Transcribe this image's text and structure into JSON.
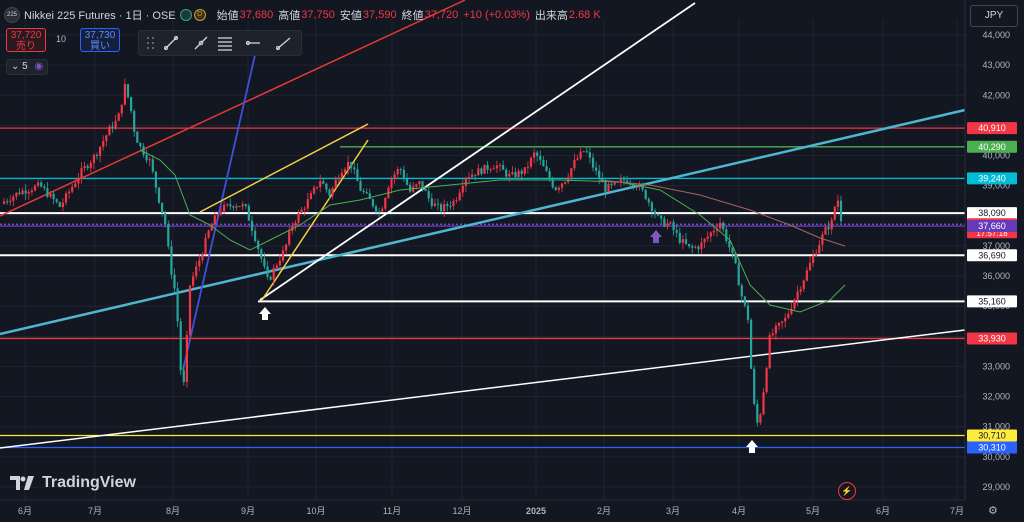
{
  "header": {
    "symbol": "Nikkei 225 Futures · 1日 · OSE",
    "symbol_icon": "225",
    "d_badge": "D",
    "open_label": "始値",
    "open": "37,680",
    "high_label": "高値",
    "high": "37,750",
    "low_label": "安値",
    "low": "37,590",
    "close_label": "終値",
    "close": "37,720",
    "change": "+10 (+0.03%)",
    "volume_label": "出来高",
    "volume": "2.68 K"
  },
  "order": {
    "sell_price": "37,720",
    "sell_label": "売り",
    "qty": "10",
    "buy_price": "37,730",
    "buy_label": "買い"
  },
  "period": "5",
  "currency": "JPY",
  "logo": "TradingView",
  "icons": [
    "drag-handle-icon",
    "trend-line-icon",
    "info-line-icon",
    "fib-icon",
    "horizontal-ray-icon",
    "ray-icon",
    "chevron-down-icon",
    "gear-icon",
    "bolt-icon"
  ],
  "colors": {
    "up": "#f23645",
    "down": "#26a69a",
    "bg": "#131722"
  },
  "chart_data": {
    "type": "candlestick",
    "title": "Nikkei 225 Futures · 1日 · OSE",
    "x_tick_labels": [
      "6月",
      "7月",
      "8月",
      "9月",
      "10月",
      "11月",
      "12月",
      "2025",
      "2月",
      "3月",
      "4月",
      "5月",
      "6月",
      "7月"
    ],
    "y_tick_labels": [
      "29,000",
      "30,000",
      "31,000",
      "32,000",
      "33,000",
      "34,000",
      "35,000",
      "36,000",
      "37,000",
      "38,000",
      "39,000",
      "40,000",
      "41,000",
      "42,000",
      "43,000",
      "44,000"
    ],
    "ylim": [
      28900,
      44200
    ],
    "grid": true,
    "ohlc_points": [
      [
        0,
        38400
      ],
      [
        20,
        38800
      ],
      [
        40,
        39000
      ],
      [
        60,
        38300
      ],
      [
        80,
        39400
      ],
      [
        95,
        40000
      ],
      [
        110,
        40900
      ],
      [
        118,
        41200
      ],
      [
        125,
        42300
      ],
      [
        130,
        41700
      ],
      [
        135,
        40700
      ],
      [
        140,
        40300
      ],
      [
        150,
        39800
      ],
      [
        160,
        38400
      ],
      [
        165,
        37800
      ],
      [
        170,
        36400
      ],
      [
        175,
        35500
      ],
      [
        180,
        33600
      ],
      [
        182,
        31600
      ],
      [
        186,
        33400
      ],
      [
        190,
        35700
      ],
      [
        200,
        36600
      ],
      [
        210,
        37600
      ],
      [
        220,
        38200
      ],
      [
        235,
        38400
      ],
      [
        245,
        38300
      ],
      [
        255,
        37300
      ],
      [
        262,
        36500
      ],
      [
        268,
        35800
      ],
      [
        275,
        36300
      ],
      [
        285,
        36900
      ],
      [
        292,
        37700
      ],
      [
        300,
        38100
      ],
      [
        310,
        38600
      ],
      [
        320,
        39200
      ],
      [
        330,
        38700
      ],
      [
        340,
        39500
      ],
      [
        350,
        39800
      ],
      [
        360,
        38900
      ],
      [
        370,
        38500
      ],
      [
        380,
        38100
      ],
      [
        390,
        39200
      ],
      [
        400,
        39600
      ],
      [
        410,
        38800
      ],
      [
        420,
        39100
      ],
      [
        430,
        38500
      ],
      [
        440,
        38200
      ],
      [
        455,
        38500
      ],
      [
        465,
        39300
      ],
      [
        480,
        39500
      ],
      [
        495,
        39700
      ],
      [
        510,
        39300
      ],
      [
        525,
        39500
      ],
      [
        535,
        40100
      ],
      [
        545,
        39500
      ],
      [
        555,
        38900
      ],
      [
        565,
        39200
      ],
      [
        575,
        39800
      ],
      [
        585,
        40200
      ],
      [
        595,
        39500
      ],
      [
        605,
        38900
      ],
      [
        615,
        39000
      ],
      [
        625,
        39200
      ],
      [
        635,
        39100
      ],
      [
        645,
        38700
      ],
      [
        655,
        38100
      ],
      [
        660,
        37800
      ],
      [
        670,
        37700
      ],
      [
        680,
        37200
      ],
      [
        690,
        36900
      ],
      [
        700,
        37000
      ],
      [
        710,
        37400
      ],
      [
        720,
        37800
      ],
      [
        728,
        37100
      ],
      [
        735,
        36400
      ],
      [
        742,
        35300
      ],
      [
        748,
        34600
      ],
      [
        753,
        31900
      ],
      [
        758,
        31000
      ],
      [
        762,
        31800
      ],
      [
        766,
        32900
      ],
      [
        770,
        34000
      ],
      [
        778,
        34300
      ],
      [
        786,
        34600
      ],
      [
        795,
        35300
      ],
      [
        805,
        36000
      ],
      [
        815,
        36800
      ],
      [
        825,
        37500
      ],
      [
        832,
        37800
      ],
      [
        837,
        38700
      ],
      [
        842,
        37720
      ]
    ],
    "levels": [
      {
        "label": "40,910",
        "value": 40910,
        "color": "#f23645"
      },
      {
        "label": "40,290",
        "value": 40290,
        "color": "#4caf50"
      },
      {
        "label": "39,240",
        "value": 39240,
        "color": "#00bcd4"
      },
      {
        "label": "38,090",
        "value": 38090,
        "color": "#ffffff"
      },
      {
        "label": "37,720",
        "value": 37720,
        "color": "#f23645",
        "sub": "17:57:18"
      },
      {
        "label": "37,660",
        "value": 37660,
        "color": "#673ab7"
      },
      {
        "label": "36,690",
        "value": 36690,
        "color": "#ffffff"
      },
      {
        "label": "35,160",
        "value": 35160,
        "color": "#ffffff"
      },
      {
        "label": "33,930",
        "value": 33930,
        "color": "#f23645"
      },
      {
        "label": "30,710",
        "value": 30710,
        "color": "#ffeb3b"
      },
      {
        "label": "30,310",
        "value": 30310,
        "color": "#2962ff"
      }
    ]
  }
}
